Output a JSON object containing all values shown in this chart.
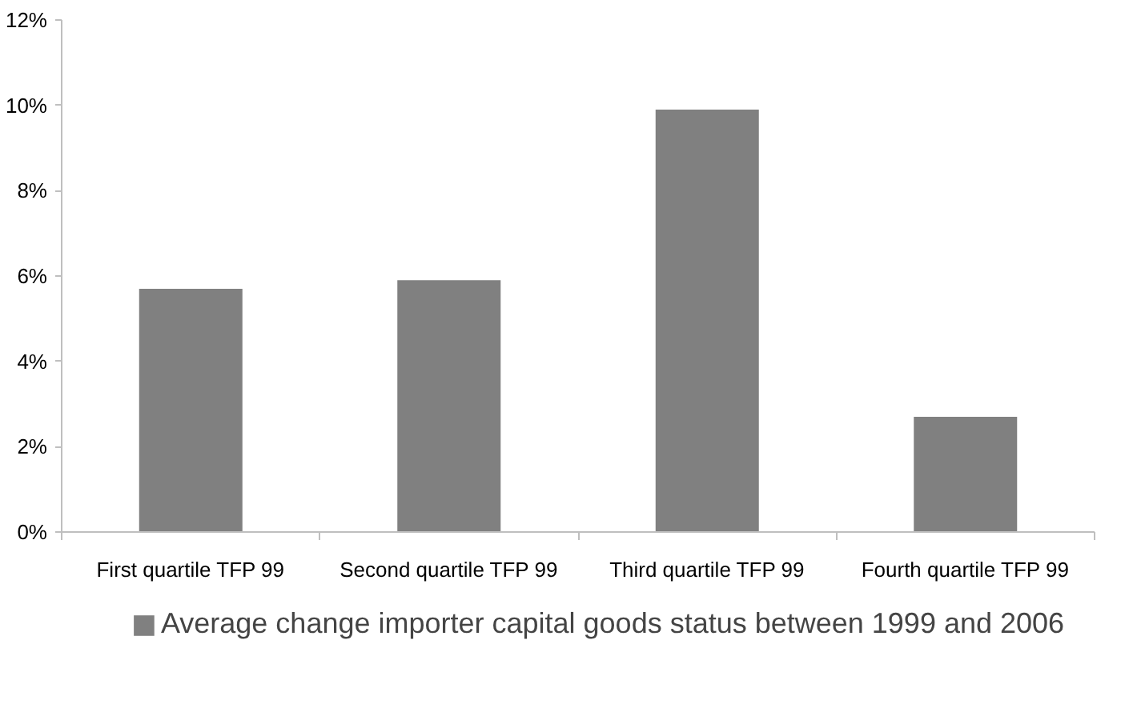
{
  "chart_data": {
    "type": "bar",
    "categories": [
      "First quartile TFP 99",
      "Second quartile TFP 99",
      "Third quartile TFP 99",
      "Fourth quartile TFP 99"
    ],
    "series": [
      {
        "name": "Average change importer capital goods status between 1999 and 2006",
        "color": "#808080",
        "values": [
          5.7,
          5.9,
          9.9,
          2.7
        ]
      }
    ],
    "ylim": [
      0,
      12
    ],
    "yticks": [
      {
        "value": 0,
        "label": "0%"
      },
      {
        "value": 2,
        "label": "2%"
      },
      {
        "value": 4,
        "label": "4%"
      },
      {
        "value": 6,
        "label": "6%"
      },
      {
        "value": 8,
        "label": "8%"
      },
      {
        "value": 10,
        "label": "10%"
      },
      {
        "value": 12,
        "label": "12%"
      }
    ],
    "grid": false,
    "legend": "bottom"
  }
}
